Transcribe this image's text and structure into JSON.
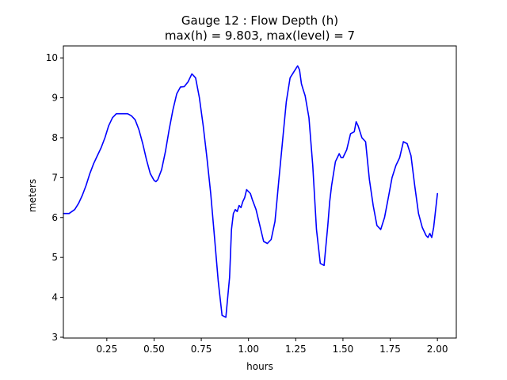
{
  "chart_data": {
    "type": "line",
    "title": "Gauge 12 : Flow Depth (h)",
    "subtitle": "max(h) =   9.803,    max(level) = 7",
    "xlabel": "hours",
    "ylabel": "meters",
    "xlim": [
      0.02,
      2.1
    ],
    "ylim": [
      2.98,
      10.3
    ],
    "xticks": [
      0.25,
      0.5,
      0.75,
      1.0,
      1.25,
      1.5,
      1.75,
      2.0
    ],
    "xtick_labels": [
      "0.25",
      "0.50",
      "0.75",
      "1.00",
      "1.25",
      "1.50",
      "1.75",
      "2.00"
    ],
    "yticks": [
      3,
      4,
      5,
      6,
      7,
      8,
      9,
      10
    ],
    "ytick_labels": [
      "3",
      "4",
      "5",
      "6",
      "7",
      "8",
      "9",
      "10"
    ],
    "grid": false,
    "line_color": "#0000ff",
    "series": [
      {
        "x": [
          0.02,
          0.05,
          0.08,
          0.1,
          0.12,
          0.14,
          0.16,
          0.18,
          0.2,
          0.22,
          0.24,
          0.26,
          0.28,
          0.3,
          0.32,
          0.34,
          0.36,
          0.38,
          0.4,
          0.42,
          0.44,
          0.46,
          0.48,
          0.5,
          0.51,
          0.52,
          0.54,
          0.56,
          0.58,
          0.6,
          0.62,
          0.64,
          0.66,
          0.68,
          0.7,
          0.72,
          0.74,
          0.76,
          0.78,
          0.8,
          0.82,
          0.84,
          0.86,
          0.88,
          0.9,
          0.91,
          0.92,
          0.93,
          0.94,
          0.95,
          0.96,
          0.97,
          0.98,
          0.99,
          1.0,
          1.01,
          1.02,
          1.04,
          1.06,
          1.08,
          1.1,
          1.12,
          1.14,
          1.15,
          1.16,
          1.18,
          1.2,
          1.22,
          1.24,
          1.26,
          1.27,
          1.28,
          1.29,
          1.3,
          1.32,
          1.34,
          1.36,
          1.38,
          1.4,
          1.42,
          1.43,
          1.44,
          1.46,
          1.48,
          1.49,
          1.5,
          1.52,
          1.54,
          1.56,
          1.57,
          1.58,
          1.6,
          1.62,
          1.64,
          1.66,
          1.68,
          1.7,
          1.72,
          1.74,
          1.76,
          1.78,
          1.8,
          1.82,
          1.84,
          1.86,
          1.88,
          1.9,
          1.92,
          1.94,
          1.95,
          1.96,
          1.97,
          1.98,
          2.0
        ],
        "y": [
          6.1,
          6.1,
          6.2,
          6.35,
          6.55,
          6.8,
          7.1,
          7.35,
          7.55,
          7.75,
          8.0,
          8.3,
          8.5,
          8.6,
          8.6,
          8.6,
          8.6,
          8.55,
          8.45,
          8.2,
          7.85,
          7.45,
          7.1,
          6.93,
          6.9,
          6.95,
          7.2,
          7.65,
          8.2,
          8.7,
          9.1,
          9.27,
          9.28,
          9.4,
          9.6,
          9.5,
          9.0,
          8.3,
          7.5,
          6.6,
          5.5,
          4.4,
          3.55,
          3.5,
          4.5,
          5.7,
          6.1,
          6.2,
          6.15,
          6.3,
          6.25,
          6.4,
          6.5,
          6.7,
          6.65,
          6.6,
          6.45,
          6.2,
          5.8,
          5.4,
          5.35,
          5.45,
          5.9,
          6.4,
          6.9,
          7.9,
          8.9,
          9.5,
          9.65,
          9.8,
          9.7,
          9.35,
          9.2,
          9.05,
          8.5,
          7.3,
          5.7,
          4.85,
          4.8,
          5.8,
          6.4,
          6.8,
          7.4,
          7.6,
          7.5,
          7.5,
          7.7,
          8.1,
          8.15,
          8.4,
          8.3,
          8.0,
          7.9,
          6.95,
          6.3,
          5.8,
          5.7,
          6.0,
          6.5,
          7.0,
          7.3,
          7.5,
          7.9,
          7.85,
          7.55,
          6.8,
          6.1,
          5.75,
          5.55,
          5.5,
          5.6,
          5.5,
          5.75,
          6.6
        ]
      }
    ]
  }
}
